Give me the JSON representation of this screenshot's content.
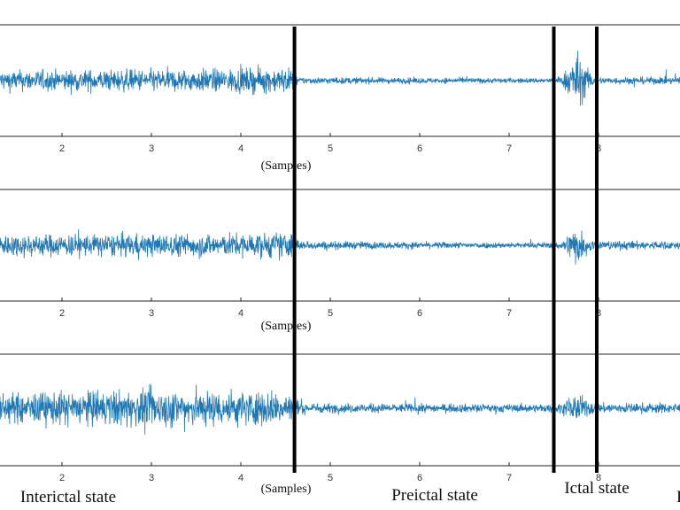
{
  "chart_data": [
    {
      "type": "line",
      "xlabel": "(Samples)",
      "xlim": [
        1.4,
        9.0
      ],
      "ylim": [
        -1,
        1
      ],
      "x_ticks": [
        "2",
        "3",
        "4",
        "5",
        "6",
        "7",
        "8"
      ],
      "series": [
        {
          "color": "#1f77b4",
          "envelope": {
            "x": [
              1.4,
              2.0,
              3.0,
              4.0,
              4.6,
              4.65,
              5.0,
              6.0,
              7.0,
              7.5,
              7.6,
              7.75,
              7.9,
              8.0,
              9.0
            ],
            "amplitude": [
              0.28,
              0.28,
              0.3,
              0.32,
              0.34,
              0.1,
              0.09,
              0.08,
              0.07,
              0.07,
              0.15,
              0.8,
              0.25,
              0.1,
              0.1
            ]
          }
        }
      ]
    },
    {
      "type": "line",
      "xlabel": "(Samples)",
      "xlim": [
        1.4,
        9.0
      ],
      "ylim": [
        -1,
        1
      ],
      "x_ticks": [
        "2",
        "3",
        "4",
        "5",
        "6",
        "7",
        "8"
      ],
      "series": [
        {
          "color": "#1f77b4",
          "envelope": {
            "x": [
              1.4,
              2.0,
              3.0,
              4.0,
              4.6,
              4.65,
              5.0,
              6.0,
              7.0,
              7.5,
              7.6,
              7.75,
              7.9,
              8.0,
              9.0
            ],
            "amplitude": [
              0.3,
              0.3,
              0.3,
              0.32,
              0.36,
              0.12,
              0.11,
              0.09,
              0.08,
              0.08,
              0.14,
              0.55,
              0.2,
              0.12,
              0.12
            ]
          }
        }
      ]
    },
    {
      "type": "line",
      "xlabel": "(Samples)",
      "xlim": [
        1.4,
        9.0
      ],
      "ylim": [
        -1,
        1
      ],
      "x_ticks": [
        "2",
        "3",
        "4",
        "5",
        "6",
        "7",
        "8"
      ],
      "series": [
        {
          "color": "#1f77b4",
          "envelope": {
            "x": [
              1.4,
              2.0,
              3.0,
              4.0,
              4.6,
              4.65,
              5.0,
              6.0,
              7.0,
              7.5,
              7.6,
              7.75,
              7.9,
              8.0,
              9.0
            ],
            "amplitude": [
              0.4,
              0.45,
              0.5,
              0.48,
              0.45,
              0.14,
              0.13,
              0.12,
              0.11,
              0.11,
              0.15,
              0.4,
              0.2,
              0.14,
              0.14
            ]
          }
        }
      ]
    }
  ],
  "boundaries": [
    4.6,
    7.5,
    7.98
  ],
  "states": [
    {
      "label": "Interictal state",
      "x": 2.2
    },
    {
      "label": "Preictal state",
      "x": 6.2
    },
    {
      "label": "Ictal state",
      "x": 8.0
    },
    {
      "label": "P",
      "x": 8.95
    }
  ],
  "colors": {
    "signal": "#1f77b4",
    "axes": "#222222",
    "boundary": "#000000"
  }
}
